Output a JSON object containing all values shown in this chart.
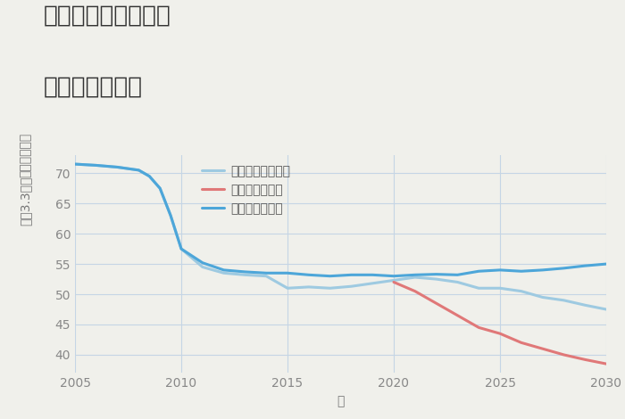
{
  "title_line1": "奈良県奈良市右京の",
  "title_line2": "土地の価格推移",
  "xlabel": "年",
  "ylabel_top": "単価（万円）",
  "ylabel_bottom": "坪（3.3㎡）",
  "xlim": [
    2005,
    2030
  ],
  "ylim": [
    37,
    73
  ],
  "yticks": [
    40,
    45,
    50,
    55,
    60,
    65,
    70
  ],
  "xticks": [
    2005,
    2010,
    2015,
    2020,
    2025,
    2030
  ],
  "background_color": "#f0f0eb",
  "plot_bg_color": "#f0f0eb",
  "grid_color": "#c5d5e5",
  "good_scenario": {
    "label": "グッドシナリオ",
    "color": "#4da6d9",
    "x": [
      2005,
      2006,
      2007,
      2008,
      2008.5,
      2009,
      2009.5,
      2010,
      2011,
      2012,
      2013,
      2014,
      2015,
      2016,
      2017,
      2018,
      2019,
      2020,
      2021,
      2022,
      2023,
      2024,
      2025,
      2026,
      2027,
      2028,
      2029,
      2030
    ],
    "y": [
      71.5,
      71.3,
      71.0,
      70.5,
      69.5,
      67.5,
      63.0,
      57.5,
      55.2,
      54.0,
      53.7,
      53.5,
      53.5,
      53.2,
      53.0,
      53.2,
      53.2,
      53.0,
      53.2,
      53.3,
      53.2,
      53.8,
      54.0,
      53.8,
      54.0,
      54.3,
      54.7,
      55.0
    ]
  },
  "bad_scenario": {
    "label": "バッドシナリオ",
    "color": "#e07878",
    "x": [
      2020,
      2021,
      2022,
      2023,
      2024,
      2025,
      2026,
      2027,
      2028,
      2029,
      2030
    ],
    "y": [
      52.0,
      50.5,
      48.5,
      46.5,
      44.5,
      43.5,
      42.0,
      41.0,
      40.0,
      39.2,
      38.5
    ]
  },
  "normal_scenario": {
    "label": "ノーマルシナリオ",
    "color": "#9ecae1",
    "x": [
      2005,
      2006,
      2007,
      2008,
      2008.5,
      2009,
      2009.5,
      2010,
      2011,
      2012,
      2013,
      2014,
      2015,
      2016,
      2017,
      2018,
      2019,
      2020,
      2021,
      2022,
      2023,
      2024,
      2025,
      2026,
      2027,
      2028,
      2029,
      2030
    ],
    "y": [
      71.5,
      71.3,
      71.0,
      70.5,
      69.5,
      67.5,
      63.0,
      57.5,
      54.5,
      53.5,
      53.2,
      53.0,
      51.0,
      51.2,
      51.0,
      51.3,
      51.8,
      52.3,
      52.8,
      52.5,
      52.0,
      51.0,
      51.0,
      50.5,
      49.5,
      49.0,
      48.2,
      47.5
    ]
  },
  "title_fontsize": 19,
  "axis_fontsize": 10,
  "legend_fontsize": 10,
  "tick_fontsize": 10,
  "line_width": 2.2
}
